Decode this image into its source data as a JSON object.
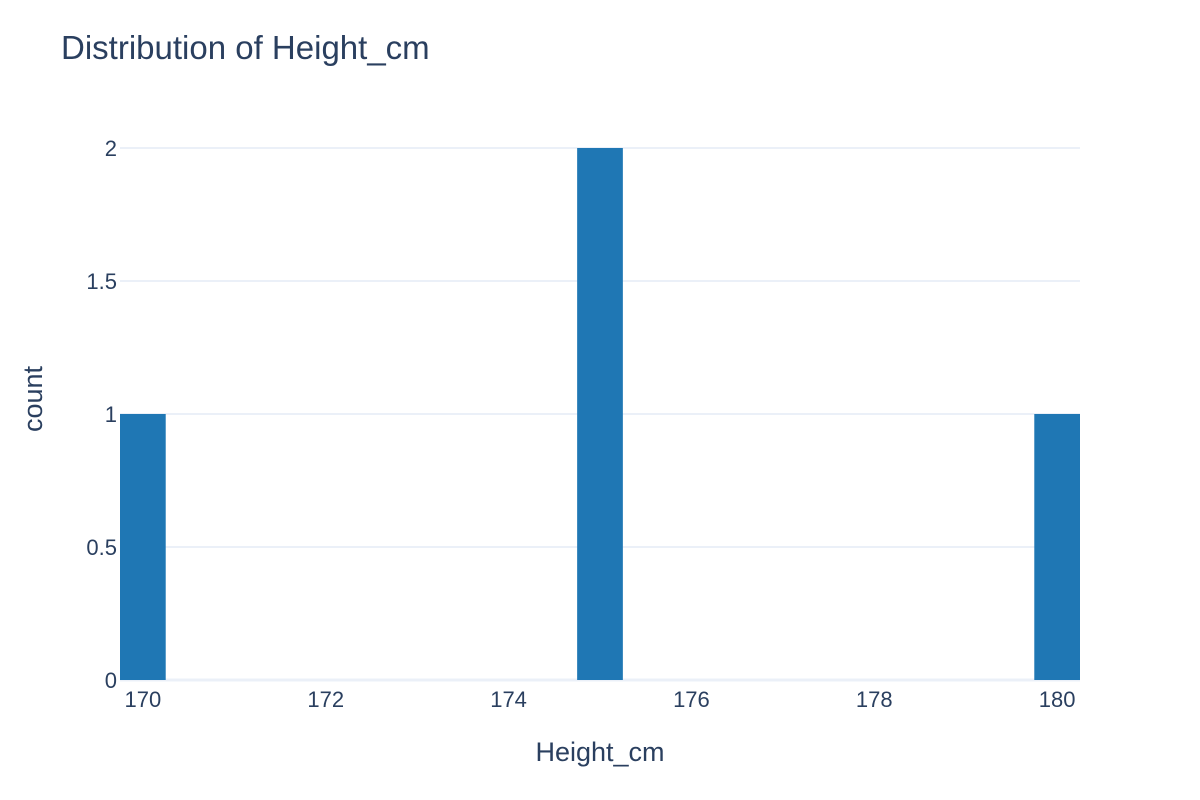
{
  "chart_data": {
    "type": "bar",
    "title": "Distribution of Height_cm",
    "xlabel": "Height_cm",
    "ylabel": "count",
    "bar_color": "#1f77b4",
    "grid": true,
    "xlim": [
      169.75,
      180.25
    ],
    "ylim": [
      0,
      2
    ],
    "x_ticks": [
      170,
      172,
      174,
      176,
      178,
      180
    ],
    "y_ticks": [
      0,
      0.5,
      1,
      1.5,
      2
    ],
    "bins": [
      {
        "x0": 169.75,
        "x1": 170.25,
        "count": 1
      },
      {
        "x0": 174.75,
        "x1": 175.25,
        "count": 2
      },
      {
        "x0": 179.75,
        "x1": 180.25,
        "count": 1
      }
    ]
  }
}
